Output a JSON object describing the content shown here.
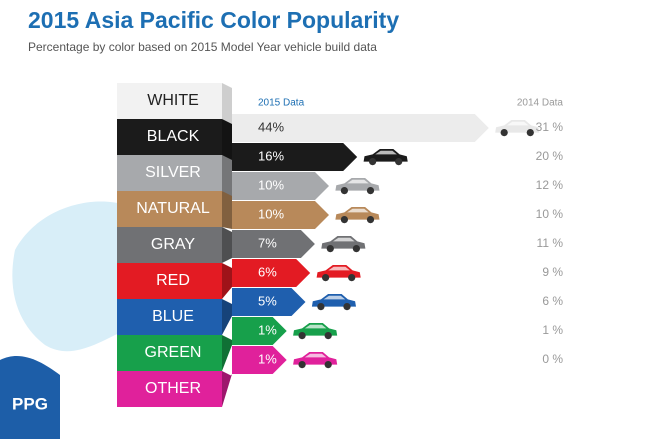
{
  "chart_data": {
    "type": "bar",
    "title": "2015 Asia Pacific Color Popularity",
    "subtitle": "Percentage by color based on 2015 Model Year vehicle build data",
    "categories": [
      "WHITE",
      "BLACK",
      "SILVER",
      "NATURAL",
      "GRAY",
      "RED",
      "BLUE",
      "GREEN",
      "OTHER"
    ],
    "colors": [
      "#f2f2f2",
      "#1b1b1b",
      "#a7a9ac",
      "#b8895a",
      "#707174",
      "#e31b23",
      "#1f5fae",
      "#17a04b",
      "#e0219b"
    ],
    "series": [
      {
        "name": "2015 Data",
        "values": [
          44,
          16,
          10,
          10,
          7,
          6,
          5,
          1,
          1
        ],
        "value_labels": [
          "44%",
          "16%",
          "10%",
          "10%",
          "7%",
          "6%",
          "5%",
          "1%",
          "1%"
        ]
      },
      {
        "name": "2014 Data",
        "values": [
          31,
          20,
          12,
          10,
          11,
          9,
          6,
          1,
          0
        ],
        "value_labels": [
          "31 %",
          "20 %",
          "12 %",
          "10 %",
          "11 %",
          "9 %",
          "6 %",
          "1 %",
          "0 %"
        ]
      }
    ],
    "logo": "PPG"
  }
}
